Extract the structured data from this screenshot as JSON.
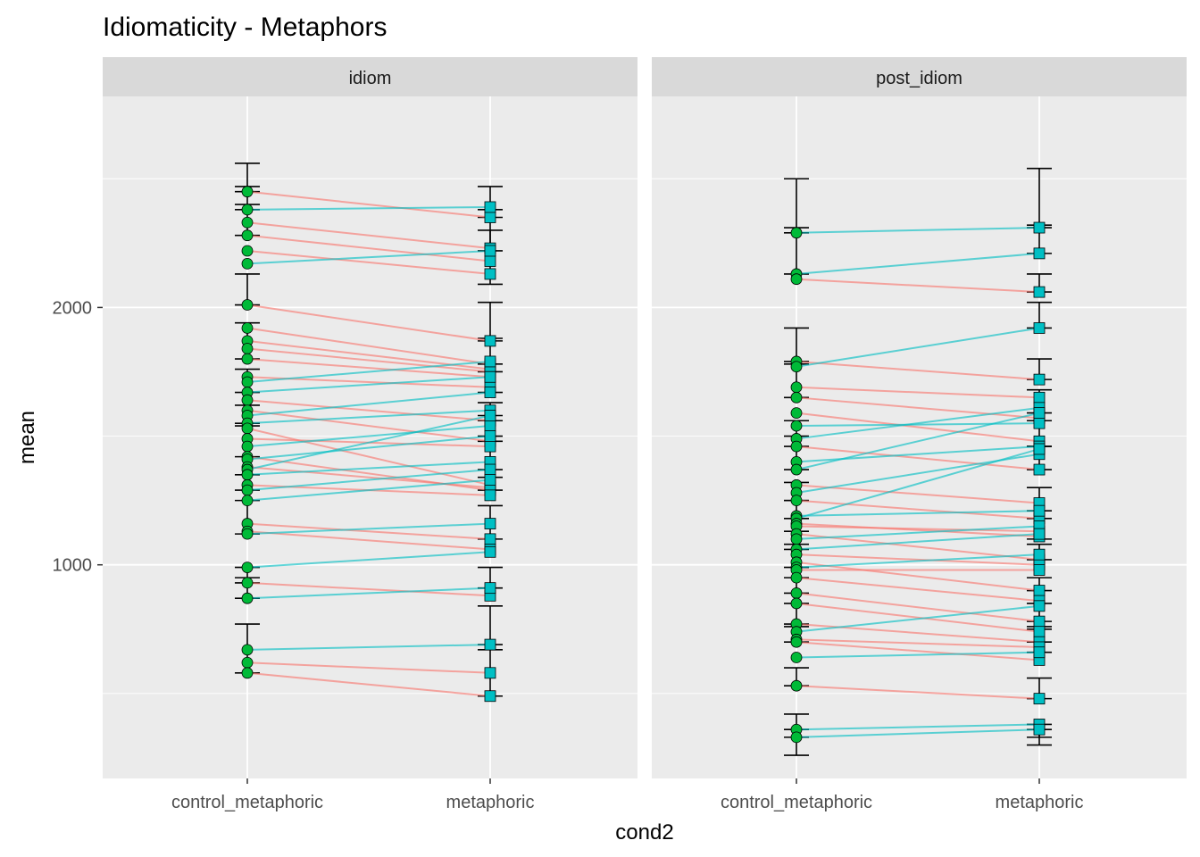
{
  "chart_data": {
    "type": "scatter",
    "title": "Idiomaticity - Metaphors",
    "xlabel": "cond2",
    "ylabel": "mean",
    "categories": [
      "control_metaphoric",
      "metaphoric"
    ],
    "ylim": [
      170,
      2820
    ],
    "y_ticks": [
      1000,
      2000
    ],
    "grid": true,
    "legend": "none",
    "colors": {
      "panel_bg": "#EBEBEB",
      "strip_bg": "#D9D9D9",
      "grid": "#FFFFFF",
      "decrease_line": "#F8766D",
      "increase_line": "#00BFC4",
      "control_point": "#00BA38",
      "metaphoric_point": "#00BFC4",
      "errorbar": "#000000"
    },
    "panels": [
      {
        "name": "idiom",
        "pairs": [
          [
            2450,
            2350
          ],
          [
            2380,
            2390
          ],
          [
            2330,
            2230
          ],
          [
            2280,
            2180
          ],
          [
            2220,
            2130
          ],
          [
            2170,
            2220
          ],
          [
            2010,
            1870
          ],
          [
            1920,
            1780
          ],
          [
            1870,
            1760
          ],
          [
            1840,
            1750
          ],
          [
            1800,
            1730
          ],
          [
            1730,
            1690
          ],
          [
            1710,
            1790
          ],
          [
            1670,
            1730
          ],
          [
            1640,
            1560
          ],
          [
            1600,
            1480
          ],
          [
            1580,
            1670
          ],
          [
            1550,
            1600
          ],
          [
            1530,
            1310
          ],
          [
            1490,
            1460
          ],
          [
            1460,
            1540
          ],
          [
            1420,
            1290
          ],
          [
            1410,
            1500
          ],
          [
            1380,
            1300
          ],
          [
            1370,
            1580
          ],
          [
            1350,
            1400
          ],
          [
            1310,
            1270
          ],
          [
            1290,
            1370
          ],
          [
            1250,
            1330
          ],
          [
            1160,
            1100
          ],
          [
            1130,
            1060
          ],
          [
            1120,
            1160
          ],
          [
            990,
            1050
          ],
          [
            930,
            880
          ],
          [
            870,
            910
          ],
          [
            670,
            690
          ],
          [
            620,
            580
          ],
          [
            580,
            490
          ]
        ],
        "ctrl_errorbars": [
          [
            2450,
            2560
          ],
          [
            2380,
            2470
          ],
          [
            2280,
            2400
          ],
          [
            2010,
            2130
          ],
          [
            1800,
            1940
          ],
          [
            1670,
            1760
          ],
          [
            1550,
            1620
          ],
          [
            1420,
            1540
          ],
          [
            1290,
            1350
          ],
          [
            1120,
            1250
          ],
          [
            930,
            990
          ],
          [
            870,
            950
          ],
          [
            580,
            770
          ]
        ],
        "meta_errorbars": [
          [
            2350,
            2470
          ],
          [
            2220,
            2380
          ],
          [
            2090,
            2300
          ],
          [
            1870,
            2020
          ],
          [
            1750,
            1880
          ],
          [
            1670,
            1780
          ],
          [
            1560,
            1630
          ],
          [
            1480,
            1580
          ],
          [
            1370,
            1500
          ],
          [
            1290,
            1340
          ],
          [
            1100,
            1230
          ],
          [
            910,
            990
          ],
          [
            690,
            840
          ],
          [
            490,
            670
          ]
        ]
      },
      {
        "name": "post_idiom",
        "pairs": [
          [
            2290,
            2310
          ],
          [
            2130,
            2210
          ],
          [
            2110,
            2060
          ],
          [
            1790,
            1720
          ],
          [
            1770,
            1920
          ],
          [
            1690,
            1650
          ],
          [
            1650,
            1570
          ],
          [
            1590,
            1480
          ],
          [
            1540,
            1550
          ],
          [
            1490,
            1610
          ],
          [
            1460,
            1370
          ],
          [
            1400,
            1460
          ],
          [
            1370,
            1590
          ],
          [
            1310,
            1240
          ],
          [
            1280,
            1430
          ],
          [
            1250,
            1180
          ],
          [
            1190,
            1210
          ],
          [
            1180,
            1450
          ],
          [
            1160,
            1110
          ],
          [
            1150,
            1130
          ],
          [
            1120,
            1020
          ],
          [
            1100,
            1150
          ],
          [
            1060,
            1120
          ],
          [
            1040,
            1000
          ],
          [
            1010,
            900
          ],
          [
            990,
            1040
          ],
          [
            980,
            980
          ],
          [
            950,
            860
          ],
          [
            890,
            780
          ],
          [
            850,
            740
          ],
          [
            770,
            700
          ],
          [
            740,
            840
          ],
          [
            710,
            680
          ],
          [
            700,
            630
          ],
          [
            640,
            660
          ],
          [
            530,
            480
          ],
          [
            360,
            380
          ],
          [
            330,
            360
          ]
        ],
        "ctrl_errorbars": [
          [
            2290,
            2500
          ],
          [
            2130,
            2310
          ],
          [
            1790,
            1920
          ],
          [
            1650,
            1780
          ],
          [
            1460,
            1560
          ],
          [
            1370,
            1500
          ],
          [
            1250,
            1320
          ],
          [
            1180,
            1250
          ],
          [
            1060,
            1130
          ],
          [
            990,
            1080
          ],
          [
            890,
            950
          ],
          [
            770,
            850
          ],
          [
            700,
            760
          ],
          [
            530,
            600
          ],
          [
            360,
            420
          ],
          [
            330,
            260
          ]
        ],
        "meta_errorbars": [
          [
            2310,
            2540
          ],
          [
            2210,
            2320
          ],
          [
            2060,
            2130
          ],
          [
            1920,
            2020
          ],
          [
            1720,
            1800
          ],
          [
            1590,
            1680
          ],
          [
            1460,
            1560
          ],
          [
            1370,
            1460
          ],
          [
            1210,
            1300
          ],
          [
            1100,
            1180
          ],
          [
            1020,
            1080
          ],
          [
            900,
            950
          ],
          [
            780,
            850
          ],
          [
            700,
            760
          ],
          [
            660,
            750
          ],
          [
            480,
            560
          ],
          [
            380,
            330
          ],
          [
            360,
            300
          ]
        ]
      }
    ]
  }
}
